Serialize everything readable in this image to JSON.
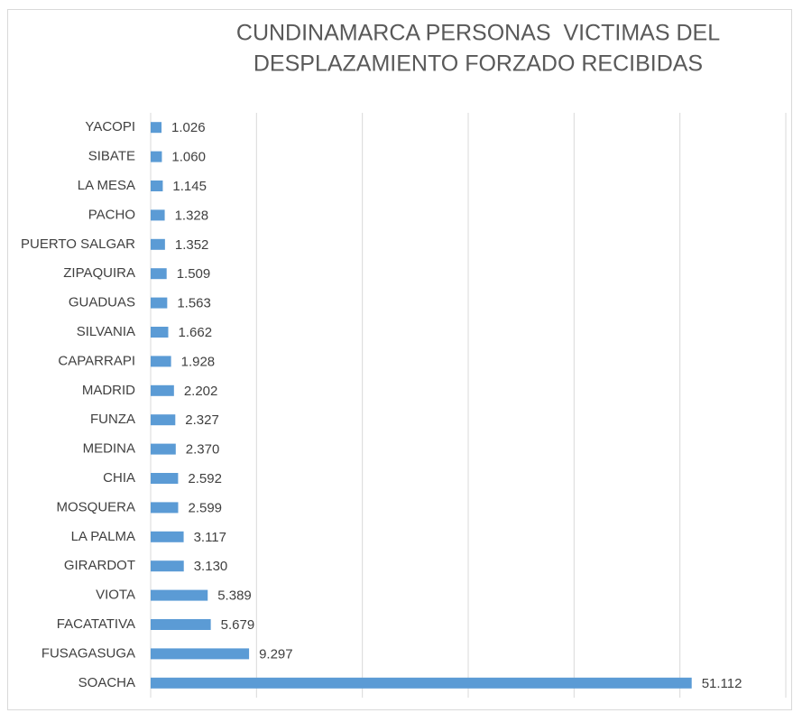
{
  "chart_data": {
    "type": "bar",
    "orientation": "horizontal",
    "title": [
      "CUNDINAMARCA PERSONAS  VICTIMAS DEL",
      "DESPLAZAMIENTO FORZADO RECIBIDAS"
    ],
    "categories": [
      "YACOPI",
      "SIBATE",
      "LA MESA",
      "PACHO",
      "PUERTO SALGAR",
      "ZIPAQUIRA",
      "GUADUAS",
      "SILVANIA",
      "CAPARRAPI",
      "MADRID",
      "FUNZA",
      "MEDINA",
      "CHIA",
      "MOSQUERA",
      "LA PALMA",
      "GIRARDOT",
      "VIOTA",
      "FACATATIVA",
      "FUSAGASUGA",
      "SOACHA"
    ],
    "values": [
      1026,
      1060,
      1145,
      1328,
      1352,
      1509,
      1563,
      1662,
      1928,
      2202,
      2327,
      2370,
      2592,
      2599,
      3117,
      3130,
      5389,
      5679,
      9297,
      51112
    ],
    "value_labels": [
      "1.026",
      "1.060",
      "1.145",
      "1.328",
      "1.352",
      "1.509",
      "1.563",
      "1.662",
      "1.928",
      "2.202",
      "2.327",
      "2.370",
      "2.592",
      "2.599",
      "3.117",
      "3.130",
      "5.389",
      "5.679",
      "9.297",
      "51.112"
    ],
    "color": "#5b9bd5",
    "xlim": [
      0,
      60000
    ],
    "xticks": [
      0,
      10000,
      20000,
      30000,
      40000,
      50000,
      60000
    ],
    "grid": true
  }
}
